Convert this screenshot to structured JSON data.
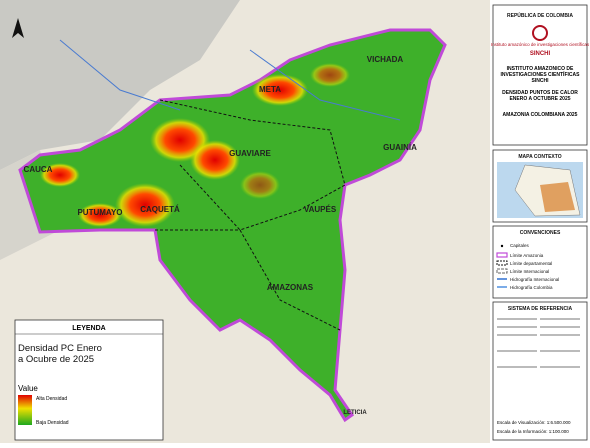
{
  "header": {
    "country": "REPÚBLICA DE COLOMBIA",
    "logo_text": "Instituto amazónico de investigaciones científicas",
    "logo_name": "SINCHI",
    "institute": "INSTITUTO AMAZÓNICO DE INVESTIGACIONES CIENTÍFICAS SINCHI",
    "title": "DENSIDAD PUNTOS DE CALOR ENERO A OCTUBRE 2025",
    "region": "AMAZONIA COLOMBIANA 2025"
  },
  "context": {
    "title": "MAPA CONTEXTO"
  },
  "conventions": {
    "title": "CONVENCIONES",
    "items": [
      "Capitales",
      "Límite Amazonia",
      "Límite departamental",
      "Límite Internacional",
      "Hidrografía Internacional",
      "Hidrografía Colombia"
    ]
  },
  "reference": {
    "title": "SISTEMA DE REFERENCIA"
  },
  "scale": {
    "visual": "Escala de Visualización: 1:6.500.000",
    "information": "Escala de la Información: 1:100.000"
  },
  "legend": {
    "title": "LEYENDA",
    "layer": "Densidad PC Enero a Ocubre de 2025",
    "field": "Value",
    "high": "Alta Densidad",
    "low": "Baja Densidad"
  },
  "map_labels": [
    "VICHADA",
    "META",
    "GUAVIARE",
    "GUAINÍA",
    "CAQUETÁ",
    "PUTUMAYO",
    "CAUCA",
    "VAUPÉS",
    "AMAZONAS",
    "LETICIA"
  ]
}
